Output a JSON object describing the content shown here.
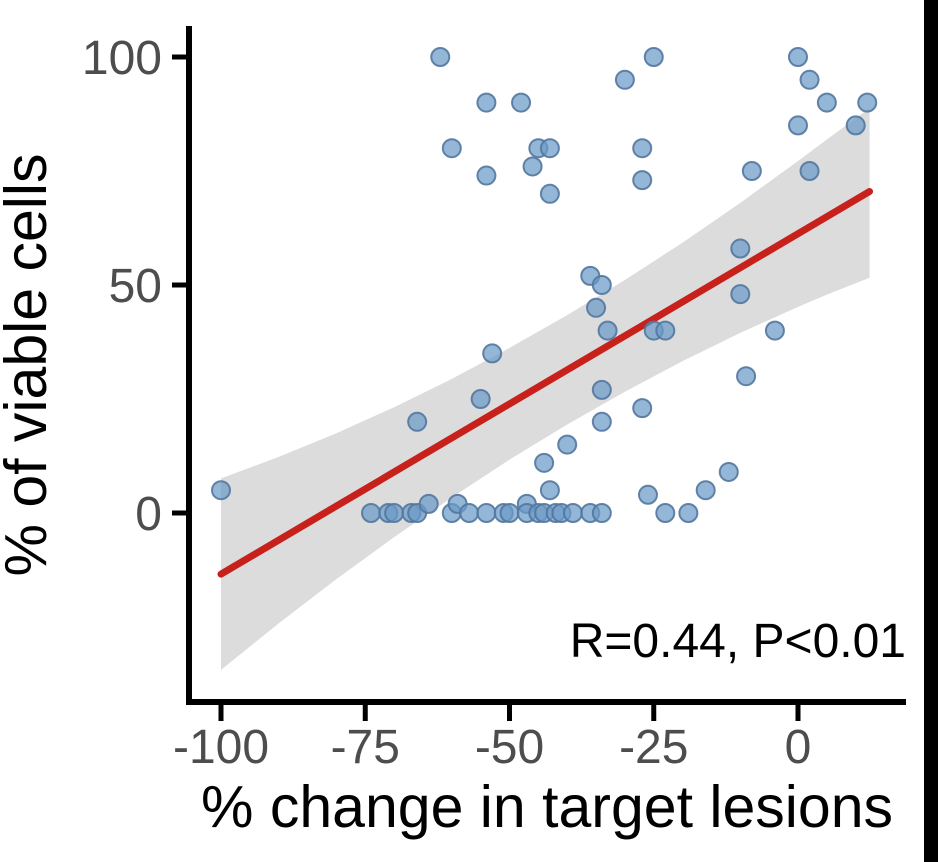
{
  "figure": {
    "background": "#ffffff",
    "right_bar_color": "#000000"
  },
  "chart_data": {
    "type": "scatter",
    "title": "",
    "xlabel": "% change in target lesions",
    "ylabel": "% of viable cells",
    "annotation": "R=0.44, P<0.01",
    "x_ticks": [
      -100,
      -75,
      -50,
      -25,
      0
    ],
    "x_tick_labels": [
      "-100",
      "-75",
      "-50",
      "-25",
      "0"
    ],
    "y_ticks": [
      0,
      50,
      100
    ],
    "y_tick_labels": [
      "0",
      "50",
      "100"
    ],
    "xlim": [
      -105,
      19
    ],
    "ylim": [
      -42,
      107
    ],
    "grid": "off",
    "legend_position": "none",
    "points": [
      [
        -62,
        100
      ],
      [
        -25,
        100
      ],
      [
        0,
        100
      ],
      [
        -30,
        95
      ],
      [
        2,
        95
      ],
      [
        -54,
        90
      ],
      [
        -48,
        90
      ],
      [
        5,
        90
      ],
      [
        12,
        90
      ],
      [
        0,
        85
      ],
      [
        10,
        85
      ],
      [
        -60,
        80
      ],
      [
        -45,
        80
      ],
      [
        -43,
        80
      ],
      [
        -27,
        80
      ],
      [
        -46,
        76
      ],
      [
        -8,
        75
      ],
      [
        2,
        75
      ],
      [
        -54,
        74
      ],
      [
        -27,
        73
      ],
      [
        -43,
        70
      ],
      [
        -10,
        58
      ],
      [
        -36,
        52
      ],
      [
        -34,
        50
      ],
      [
        -10,
        48
      ],
      [
        -35,
        45
      ],
      [
        -33,
        40
      ],
      [
        -25,
        40
      ],
      [
        -23,
        40
      ],
      [
        -4,
        40
      ],
      [
        -53,
        35
      ],
      [
        -9,
        30
      ],
      [
        -34,
        27
      ],
      [
        -55,
        25
      ],
      [
        -27,
        23
      ],
      [
        -66,
        20
      ],
      [
        -34,
        20
      ],
      [
        -40,
        15
      ],
      [
        -44,
        11
      ],
      [
        -12,
        9
      ],
      [
        -100,
        5
      ],
      [
        -74,
        0
      ],
      [
        -71,
        0
      ],
      [
        -70,
        0
      ],
      [
        -67,
        0
      ],
      [
        -66,
        0
      ],
      [
        -64,
        2
      ],
      [
        -60,
        0
      ],
      [
        -59,
        2
      ],
      [
        -57,
        0
      ],
      [
        -54,
        0
      ],
      [
        -51,
        0
      ],
      [
        -50,
        0
      ],
      [
        -47,
        2
      ],
      [
        -47,
        0
      ],
      [
        -45,
        0
      ],
      [
        -44,
        0
      ],
      [
        -43,
        5
      ],
      [
        -42,
        0
      ],
      [
        -41,
        0
      ],
      [
        -39,
        0
      ],
      [
        -36,
        0
      ],
      [
        -34,
        0
      ],
      [
        -26,
        4
      ],
      [
        -23,
        0
      ],
      [
        -19,
        0
      ],
      [
        -16,
        5
      ]
    ],
    "regression_line": {
      "x1": -100,
      "y1": -13.4,
      "x2": 12.4,
      "y2": 70.5,
      "equation": "y = 61.2 + 0.746x"
    },
    "ci_band": {
      "x": [
        -100,
        -90,
        -80,
        -70,
        -60,
        -50,
        -40,
        -30,
        -20,
        -10,
        0,
        5,
        12.4
      ],
      "upper": [
        7.6,
        12.3,
        17.5,
        23.2,
        29.4,
        36.2,
        43.4,
        51.1,
        59.3,
        68.0,
        77.2,
        81.9,
        88.8
      ],
      "lower": [
        -34.4,
        -24.2,
        -14.5,
        -5.3,
        3.4,
        11.7,
        19.4,
        26.6,
        33.3,
        39.5,
        45.2,
        47.9,
        51.6
      ]
    },
    "stats": {
      "R": 0.44,
      "P": "<0.01"
    },
    "colors": {
      "point_fill": "#6b9ac7",
      "point_stroke": "#53779e",
      "regression_line": "#c8211b",
      "ci_band": "#dcdcdc",
      "axis_line": "#000000",
      "tick_label": "#4d4d4d",
      "axis_title": "#000000",
      "annotation": "#000000"
    }
  }
}
